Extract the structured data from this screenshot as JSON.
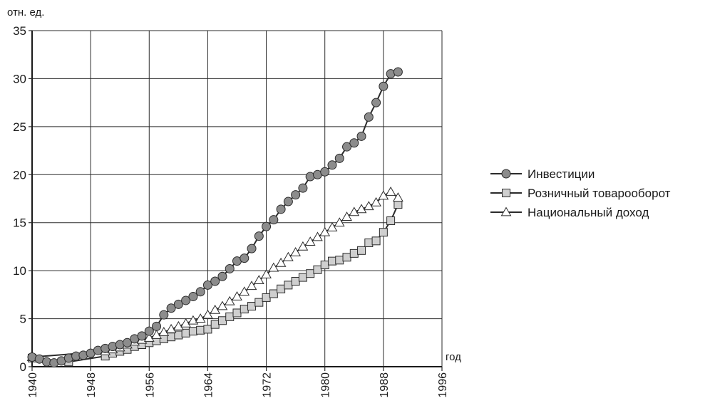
{
  "chart_data": {
    "type": "line",
    "ylabel": "отн. ед.",
    "xlabel": "год",
    "xlim": [
      1940,
      1996
    ],
    "ylim": [
      0,
      35
    ],
    "xticks": [
      "1940",
      "1948",
      "1956",
      "1964",
      "1972",
      "1980",
      "1988",
      "1996"
    ],
    "yticks": [
      "0",
      "5",
      "10",
      "15",
      "20",
      "25",
      "30",
      "35"
    ],
    "grid": true,
    "legend_position": "right",
    "colors": {
      "line": "#2b2b2b",
      "circle_fill": "#8c8c8c",
      "square_fill": "#cfcfcf",
      "triangle_fill": "#ffffff"
    },
    "series": [
      {
        "name": "Инвестиции",
        "marker": "circle",
        "x": [
          1940,
          1941,
          1942,
          1943,
          1944,
          1945,
          1946,
          1947,
          1948,
          1949,
          1950,
          1951,
          1952,
          1953,
          1954,
          1955,
          1956,
          1957,
          1958,
          1959,
          1960,
          1961,
          1962,
          1963,
          1964,
          1965,
          1966,
          1967,
          1968,
          1969,
          1970,
          1971,
          1972,
          1973,
          1974,
          1975,
          1976,
          1977,
          1978,
          1979,
          1980,
          1981,
          1982,
          1983,
          1984,
          1985,
          1986,
          1987,
          1988,
          1989,
          1990
        ],
        "y": [
          1.0,
          0.8,
          0.5,
          0.4,
          0.6,
          0.9,
          1.1,
          1.2,
          1.4,
          1.7,
          1.9,
          2.1,
          2.3,
          2.5,
          2.9,
          3.2,
          3.7,
          4.2,
          5.4,
          6.1,
          6.5,
          6.9,
          7.3,
          7.8,
          8.5,
          8.9,
          9.4,
          10.2,
          11.0,
          11.3,
          12.3,
          13.6,
          14.6,
          15.3,
          16.4,
          17.2,
          17.9,
          18.6,
          19.8,
          20.0,
          20.3,
          21.0,
          21.7,
          22.9,
          23.3,
          24.0,
          26.0,
          27.5,
          29.2,
          30.5,
          30.7
        ]
      },
      {
        "name": "Розничный товарооборот",
        "marker": "square",
        "x": [
          1940,
          1945,
          1950,
          1951,
          1952,
          1953,
          1954,
          1955,
          1956,
          1957,
          1958,
          1959,
          1960,
          1961,
          1962,
          1963,
          1964,
          1965,
          1966,
          1967,
          1968,
          1969,
          1970,
          1971,
          1972,
          1973,
          1974,
          1975,
          1976,
          1977,
          1978,
          1979,
          1980,
          1981,
          1982,
          1983,
          1984,
          1985,
          1986,
          1987,
          1988,
          1989,
          1990
        ],
        "y": [
          0.9,
          0.5,
          1.1,
          1.4,
          1.6,
          1.8,
          2.1,
          2.3,
          2.5,
          2.7,
          2.9,
          3.1,
          3.3,
          3.5,
          3.7,
          3.8,
          3.9,
          4.4,
          4.8,
          5.2,
          5.6,
          6.0,
          6.3,
          6.7,
          7.2,
          7.6,
          8.1,
          8.5,
          8.9,
          9.3,
          9.7,
          10.1,
          10.6,
          11.0,
          11.1,
          11.4,
          11.8,
          12.1,
          12.9,
          13.1,
          14.0,
          15.2,
          16.9
        ]
      },
      {
        "name": "Национальный доход",
        "marker": "triangle",
        "x": [
          1940,
          1950,
          1951,
          1952,
          1953,
          1954,
          1955,
          1956,
          1957,
          1958,
          1959,
          1960,
          1961,
          1962,
          1963,
          1964,
          1965,
          1966,
          1967,
          1968,
          1969,
          1970,
          1971,
          1972,
          1973,
          1974,
          1975,
          1976,
          1977,
          1978,
          1979,
          1980,
          1981,
          1982,
          1983,
          1984,
          1985,
          1986,
          1987,
          1988,
          1989,
          1990
        ],
        "y": [
          1.0,
          1.6,
          1.8,
          2.0,
          2.3,
          2.6,
          2.8,
          3.0,
          3.3,
          3.6,
          3.9,
          4.2,
          4.5,
          4.8,
          5.0,
          5.4,
          5.9,
          6.3,
          6.8,
          7.3,
          7.8,
          8.4,
          9.0,
          9.6,
          10.3,
          10.8,
          11.4,
          11.9,
          12.5,
          13.0,
          13.5,
          14.0,
          14.5,
          15.0,
          15.6,
          16.1,
          16.4,
          16.7,
          17.1,
          17.8,
          18.2,
          17.6
        ]
      }
    ]
  }
}
